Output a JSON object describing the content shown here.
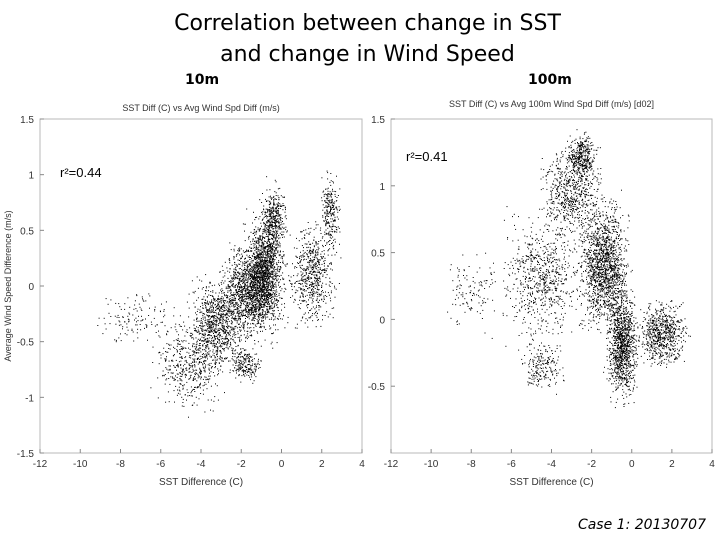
{
  "slide": {
    "title_line1": "Correlation between change in SST",
    "title_line2": "and change in Wind Speed",
    "footer": "Case 1: 20130707"
  },
  "chart_data": [
    {
      "type": "scatter",
      "panel_label": "10m",
      "title": "SST Diff (C) vs Avg Wind Spd Diff (m/s)",
      "xlabel": "SST Difference (C)",
      "ylabel": "Average Wind Speed Difference (m/s)",
      "annotation": "r²=0.44",
      "xlim": [
        -12,
        4
      ],
      "ylim": [
        -1.5,
        1.5
      ],
      "xticks": [
        "-12",
        "-10",
        "-8",
        "-6",
        "-4",
        "-2",
        "0",
        "2",
        "4"
      ],
      "yticks": [
        "-1.5",
        "-1",
        "-0.5",
        "0",
        "0.5",
        "1",
        "1.5"
      ],
      "grid": false,
      "point_color": "#000000",
      "clusters": [
        {
          "x": [
            -6.8,
            -2.5
          ],
          "y": [
            -1.2,
            -0.2
          ],
          "n": 450
        },
        {
          "x": [
            -5.0,
            -1.5
          ],
          "y": [
            -0.9,
            0.2
          ],
          "n": 900
        },
        {
          "x": [
            -3.5,
            0.5
          ],
          "y": [
            -0.6,
            0.5
          ],
          "n": 1500
        },
        {
          "x": [
            -2.0,
            0.3
          ],
          "y": [
            -0.4,
            0.8
          ],
          "n": 1100
        },
        {
          "x": [
            -1.2,
            0.4
          ],
          "y": [
            0.2,
            1.0
          ],
          "n": 350
        },
        {
          "x": [
            0.0,
            3.0
          ],
          "y": [
            -0.5,
            0.7
          ],
          "n": 600
        },
        {
          "x": [
            1.8,
            3.0
          ],
          "y": [
            0.2,
            1.1
          ],
          "n": 250
        },
        {
          "x": [
            -9.5,
            -4.5
          ],
          "y": [
            -0.6,
            0.0
          ],
          "n": 130
        },
        {
          "x": [
            -2.8,
            -0.8
          ],
          "y": [
            -0.9,
            -0.5
          ],
          "n": 200
        }
      ]
    },
    {
      "type": "scatter",
      "panel_label": "100m",
      "title": "SST Diff (C) vs Avg 100m Wind Spd Diff (m/s) [d02]",
      "xlabel": "SST Difference (C)",
      "ylabel": "",
      "annotation": "r²=0.41",
      "xlim": [
        -12,
        4
      ],
      "ylim": [
        -1,
        1.5
      ],
      "xticks": [
        "-12",
        "-10",
        "-8",
        "-6",
        "-4",
        "-2",
        "0",
        "2",
        "4"
      ],
      "yticks": [
        "-0.5",
        "0",
        "0.5",
        "1",
        "1.5"
      ],
      "grid": false,
      "point_color": "#000000",
      "clusters": [
        {
          "x": [
            -7.0,
            -2.0
          ],
          "y": [
            -0.3,
            0.9
          ],
          "n": 700
        },
        {
          "x": [
            -5.0,
            -1.0
          ],
          "y": [
            0.5,
            1.4
          ],
          "n": 650
        },
        {
          "x": [
            -3.5,
            -1.5
          ],
          "y": [
            1.0,
            1.45
          ],
          "n": 350
        },
        {
          "x": [
            -3.0,
            0.2
          ],
          "y": [
            -0.2,
            1.0
          ],
          "n": 1500
        },
        {
          "x": [
            -1.5,
            0.5
          ],
          "y": [
            -0.7,
            0.3
          ],
          "n": 1100
        },
        {
          "x": [
            0.0,
            3.0
          ],
          "y": [
            -0.4,
            0.2
          ],
          "n": 700
        },
        {
          "x": [
            -10.0,
            -6.0
          ],
          "y": [
            -0.2,
            0.6
          ],
          "n": 120
        },
        {
          "x": [
            -6.0,
            -3.0
          ],
          "y": [
            -0.6,
            -0.1
          ],
          "n": 200
        }
      ]
    }
  ]
}
